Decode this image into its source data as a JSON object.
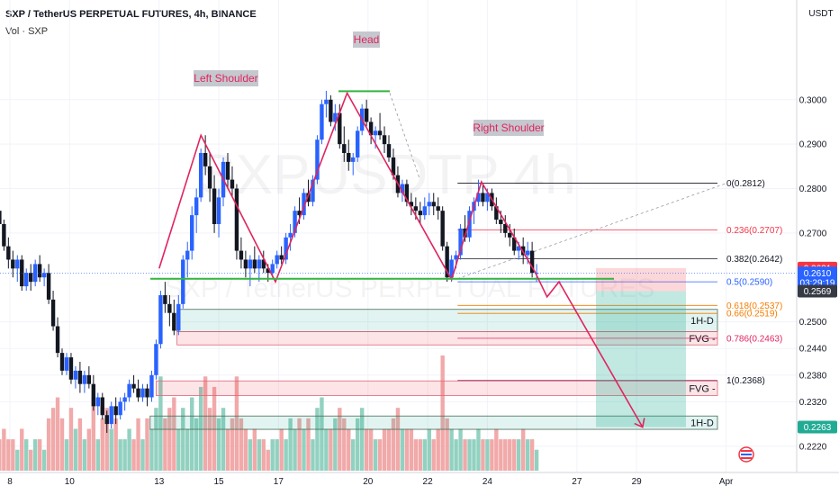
{
  "header": {
    "title": "SXP / TetherUS PERPETUAL FUTURES, 4h, BINANCE",
    "volume_label": "Vol · SXP"
  },
  "watermark": {
    "symbol": "SXPUSDTP 4h",
    "description": "SXP / TetherUS PERPETUAL FUTURES"
  },
  "colors": {
    "bull": "#2962ff",
    "bear": "#131722",
    "vol_bull": "#7fc9b5",
    "vol_bear": "#ee9a9a",
    "pattern": "#e0245e",
    "neckline": "#33b540",
    "red_badge": "#f23645",
    "blue_badge": "#2962ff",
    "green_badge": "#22ab94",
    "dark_badge": "#363a45"
  },
  "chart_data": {
    "type": "candlestick",
    "ylabel": "USDT",
    "ylim": [
      0.2175,
      0.3115
    ],
    "y_ticks": [
      0.3,
      0.29,
      0.28,
      0.27,
      0.25,
      0.244,
      0.238,
      0.232,
      0.222
    ],
    "x_ticks": [
      {
        "label": "8",
        "day": 8
      },
      {
        "label": "10",
        "day": 10
      },
      {
        "label": "13",
        "day": 13
      },
      {
        "label": "15",
        "day": 15
      },
      {
        "label": "17",
        "day": 17
      },
      {
        "label": "20",
        "day": 20
      },
      {
        "label": "22",
        "day": 22
      },
      {
        "label": "24",
        "day": 24
      },
      {
        "label": "27",
        "day": 27
      },
      {
        "label": "29",
        "day": 29
      },
      {
        "label": "Apr",
        "day": 32
      }
    ],
    "candles": [
      [
        7.2,
        0.2785,
        0.2815,
        0.277,
        0.28
      ],
      [
        7.35,
        0.28,
        0.282,
        0.277,
        0.278
      ],
      [
        7.5,
        0.278,
        0.2795,
        0.273,
        0.275
      ],
      [
        7.65,
        0.275,
        0.277,
        0.27,
        0.272
      ],
      [
        7.8,
        0.272,
        0.273,
        0.266,
        0.267
      ],
      [
        7.95,
        0.267,
        0.269,
        0.262,
        0.264
      ],
      [
        8.1,
        0.264,
        0.266,
        0.26,
        0.262
      ],
      [
        8.25,
        0.262,
        0.265,
        0.259,
        0.264
      ],
      [
        8.4,
        0.264,
        0.265,
        0.257,
        0.258
      ],
      [
        8.55,
        0.258,
        0.262,
        0.257,
        0.261
      ],
      [
        8.7,
        0.261,
        0.263,
        0.257,
        0.259
      ],
      [
        8.85,
        0.259,
        0.264,
        0.258,
        0.263
      ],
      [
        9.0,
        0.263,
        0.265,
        0.259,
        0.26
      ],
      [
        9.15,
        0.26,
        0.262,
        0.258,
        0.261
      ],
      [
        9.3,
        0.261,
        0.263,
        0.254,
        0.255
      ],
      [
        9.45,
        0.255,
        0.257,
        0.248,
        0.249
      ],
      [
        9.6,
        0.249,
        0.251,
        0.242,
        0.243
      ],
      [
        9.75,
        0.243,
        0.244,
        0.238,
        0.239
      ],
      [
        9.9,
        0.239,
        0.243,
        0.238,
        0.242
      ],
      [
        10.05,
        0.242,
        0.243,
        0.236,
        0.237
      ],
      [
        10.2,
        0.237,
        0.24,
        0.235,
        0.239
      ],
      [
        10.35,
        0.239,
        0.241,
        0.234,
        0.236
      ],
      [
        10.5,
        0.236,
        0.239,
        0.234,
        0.238
      ],
      [
        10.65,
        0.238,
        0.24,
        0.235,
        0.236
      ],
      [
        10.8,
        0.236,
        0.238,
        0.23,
        0.231
      ],
      [
        10.95,
        0.231,
        0.234,
        0.229,
        0.233
      ],
      [
        11.1,
        0.233,
        0.234,
        0.228,
        0.229
      ],
      [
        11.25,
        0.229,
        0.23,
        0.225,
        0.227
      ],
      [
        11.4,
        0.227,
        0.232,
        0.226,
        0.231
      ],
      [
        11.55,
        0.231,
        0.233,
        0.227,
        0.229
      ],
      [
        11.7,
        0.229,
        0.233,
        0.228,
        0.232
      ],
      [
        11.85,
        0.232,
        0.234,
        0.23,
        0.233
      ],
      [
        12.0,
        0.233,
        0.237,
        0.232,
        0.236
      ],
      [
        12.15,
        0.236,
        0.238,
        0.234,
        0.235
      ],
      [
        12.3,
        0.235,
        0.237,
        0.232,
        0.233
      ],
      [
        12.45,
        0.233,
        0.236,
        0.232,
        0.235
      ],
      [
        12.6,
        0.235,
        0.236,
        0.231,
        0.233
      ],
      [
        12.75,
        0.233,
        0.239,
        0.232,
        0.238
      ],
      [
        12.9,
        0.238,
        0.246,
        0.237,
        0.245
      ],
      [
        13.05,
        0.245,
        0.257,
        0.244,
        0.256
      ],
      [
        13.2,
        0.256,
        0.259,
        0.252,
        0.254
      ],
      [
        13.35,
        0.254,
        0.256,
        0.249,
        0.252
      ],
      [
        13.5,
        0.252,
        0.255,
        0.247,
        0.248
      ],
      [
        13.65,
        0.248,
        0.256,
        0.247,
        0.254
      ],
      [
        13.8,
        0.254,
        0.265,
        0.253,
        0.264
      ],
      [
        13.95,
        0.264,
        0.268,
        0.26,
        0.266
      ],
      [
        14.1,
        0.266,
        0.276,
        0.264,
        0.274
      ],
      [
        14.25,
        0.274,
        0.28,
        0.27,
        0.278
      ],
      [
        14.4,
        0.278,
        0.289,
        0.277,
        0.288
      ],
      [
        14.55,
        0.288,
        0.292,
        0.283,
        0.285
      ],
      [
        14.7,
        0.285,
        0.288,
        0.277,
        0.28
      ],
      [
        14.85,
        0.28,
        0.283,
        0.27,
        0.272
      ],
      [
        15.0,
        0.272,
        0.28,
        0.269,
        0.278
      ],
      [
        15.15,
        0.278,
        0.287,
        0.276,
        0.286
      ],
      [
        15.3,
        0.286,
        0.288,
        0.28,
        0.282
      ],
      [
        15.45,
        0.282,
        0.285,
        0.278,
        0.28
      ],
      [
        15.6,
        0.28,
        0.281,
        0.264,
        0.266
      ],
      [
        15.75,
        0.266,
        0.269,
        0.262,
        0.264
      ],
      [
        15.9,
        0.264,
        0.266,
        0.26,
        0.262
      ],
      [
        16.05,
        0.262,
        0.265,
        0.258,
        0.264
      ],
      [
        16.2,
        0.264,
        0.267,
        0.261,
        0.262
      ],
      [
        16.35,
        0.262,
        0.265,
        0.259,
        0.264
      ],
      [
        16.5,
        0.264,
        0.266,
        0.261,
        0.262
      ],
      [
        16.65,
        0.262,
        0.263,
        0.259,
        0.261
      ],
      [
        16.8,
        0.261,
        0.264,
        0.26,
        0.263
      ],
      [
        16.95,
        0.263,
        0.266,
        0.262,
        0.265
      ],
      [
        17.1,
        0.265,
        0.267,
        0.263,
        0.264
      ],
      [
        17.25,
        0.264,
        0.27,
        0.263,
        0.269
      ],
      [
        17.4,
        0.269,
        0.272,
        0.266,
        0.27
      ],
      [
        17.55,
        0.27,
        0.276,
        0.269,
        0.275
      ],
      [
        17.7,
        0.275,
        0.278,
        0.272,
        0.274
      ],
      [
        17.85,
        0.274,
        0.28,
        0.273,
        0.279
      ],
      [
        18.0,
        0.279,
        0.282,
        0.276,
        0.277
      ],
      [
        18.15,
        0.277,
        0.283,
        0.276,
        0.282
      ],
      [
        18.3,
        0.282,
        0.292,
        0.281,
        0.291
      ],
      [
        18.45,
        0.291,
        0.3,
        0.29,
        0.299
      ],
      [
        18.6,
        0.299,
        0.302,
        0.296,
        0.3
      ],
      [
        18.75,
        0.3,
        0.301,
        0.294,
        0.295
      ],
      [
        18.9,
        0.295,
        0.299,
        0.293,
        0.297
      ],
      [
        19.05,
        0.297,
        0.299,
        0.289,
        0.29
      ],
      [
        19.2,
        0.29,
        0.294,
        0.286,
        0.288
      ],
      [
        19.35,
        0.288,
        0.291,
        0.284,
        0.286
      ],
      [
        19.5,
        0.286,
        0.288,
        0.283,
        0.287
      ],
      [
        19.65,
        0.287,
        0.294,
        0.286,
        0.293
      ],
      [
        19.8,
        0.293,
        0.299,
        0.292,
        0.298
      ],
      [
        19.95,
        0.298,
        0.3,
        0.294,
        0.295
      ],
      [
        20.1,
        0.295,
        0.296,
        0.29,
        0.292
      ],
      [
        20.25,
        0.292,
        0.294,
        0.289,
        0.293
      ],
      [
        20.4,
        0.293,
        0.297,
        0.291,
        0.292
      ],
      [
        20.55,
        0.292,
        0.294,
        0.288,
        0.29
      ],
      [
        20.7,
        0.29,
        0.292,
        0.286,
        0.287
      ],
      [
        20.85,
        0.287,
        0.289,
        0.282,
        0.283
      ],
      [
        21.0,
        0.283,
        0.285,
        0.278,
        0.279
      ],
      [
        21.15,
        0.279,
        0.282,
        0.277,
        0.281
      ],
      [
        21.3,
        0.281,
        0.282,
        0.276,
        0.277
      ],
      [
        21.45,
        0.277,
        0.279,
        0.274,
        0.276
      ],
      [
        21.6,
        0.276,
        0.278,
        0.273,
        0.275
      ],
      [
        21.75,
        0.275,
        0.277,
        0.272,
        0.274
      ],
      [
        21.9,
        0.274,
        0.278,
        0.273,
        0.276
      ],
      [
        22.05,
        0.276,
        0.279,
        0.274,
        0.277
      ],
      [
        22.2,
        0.277,
        0.279,
        0.274,
        0.276
      ],
      [
        22.35,
        0.276,
        0.278,
        0.273,
        0.275
      ],
      [
        22.5,
        0.275,
        0.276,
        0.266,
        0.267
      ],
      [
        22.65,
        0.267,
        0.268,
        0.259,
        0.26
      ],
      [
        22.8,
        0.26,
        0.265,
        0.259,
        0.264
      ],
      [
        22.95,
        0.264,
        0.266,
        0.262,
        0.265
      ],
      [
        23.1,
        0.265,
        0.272,
        0.264,
        0.271
      ],
      [
        23.25,
        0.271,
        0.274,
        0.268,
        0.269
      ],
      [
        23.4,
        0.269,
        0.276,
        0.268,
        0.275
      ],
      [
        23.55,
        0.275,
        0.278,
        0.272,
        0.277
      ],
      [
        23.7,
        0.277,
        0.282,
        0.276,
        0.279
      ],
      [
        23.85,
        0.279,
        0.281,
        0.276,
        0.277
      ],
      [
        24.0,
        0.277,
        0.28,
        0.275,
        0.279
      ],
      [
        24.15,
        0.279,
        0.28,
        0.275,
        0.276
      ],
      [
        24.3,
        0.276,
        0.278,
        0.272,
        0.273
      ],
      [
        24.45,
        0.273,
        0.275,
        0.27,
        0.272
      ],
      [
        24.6,
        0.272,
        0.274,
        0.269,
        0.27
      ],
      [
        24.75,
        0.27,
        0.272,
        0.267,
        0.269
      ],
      [
        24.9,
        0.269,
        0.271,
        0.265,
        0.266
      ],
      [
        25.05,
        0.266,
        0.268,
        0.264,
        0.267
      ],
      [
        25.2,
        0.267,
        0.269,
        0.263,
        0.265
      ],
      [
        25.35,
        0.265,
        0.268,
        0.263,
        0.266
      ],
      [
        25.5,
        0.266,
        0.268,
        0.26,
        0.261
      ],
      [
        25.65,
        0.261,
        0.263,
        0.259,
        0.261
      ]
    ],
    "volume": [
      2,
      3,
      2,
      3,
      4,
      3,
      3,
      2,
      4,
      3,
      2,
      3,
      3,
      2,
      5,
      6,
      7,
      5,
      3,
      6,
      4,
      5,
      3,
      4,
      7,
      3,
      5,
      6,
      4,
      5,
      3,
      3,
      4,
      3,
      5,
      3,
      5,
      4,
      6,
      9,
      5,
      6,
      7,
      4,
      6,
      4,
      7,
      5,
      8,
      9,
      6,
      8,
      5,
      6,
      4,
      5,
      9,
      5,
      4,
      3,
      4,
      3,
      3,
      2,
      3,
      3,
      4,
      3,
      5,
      4,
      5,
      4,
      5,
      3,
      6,
      7,
      4,
      4,
      5,
      6,
      5,
      4,
      3,
      5,
      6,
      4,
      4,
      3,
      3,
      4,
      4,
      5,
      6,
      4,
      4,
      4,
      3,
      3,
      3,
      4,
      3,
      4,
      11,
      5,
      4,
      3,
      4,
      3,
      3,
      3,
      4,
      3,
      3,
      3,
      4,
      3,
      3,
      3,
      3,
      3,
      4,
      3,
      3,
      2
    ],
    "pattern_labels": [
      "Left Shoulder",
      "Head",
      "Right Shoulder"
    ],
    "pattern_zigzag": [
      [
        13.0,
        0.262
      ],
      [
        14.4,
        0.292
      ],
      [
        16.9,
        0.259
      ],
      [
        19.3,
        0.3015
      ],
      [
        22.8,
        0.2595
      ],
      [
        23.8,
        0.2815
      ],
      [
        25.6,
        0.2612
      ]
    ],
    "neckline_price": 0.2597,
    "head_top_price": 0.3015,
    "fib_levels": [
      {
        "label": "0(0.2812)",
        "price": 0.2812
      },
      {
        "label": "0.236(0.2707)",
        "price": 0.2707
      },
      {
        "label": "0.382(0.2642)",
        "price": 0.2642
      },
      {
        "label": "0.5(0.2590)",
        "price": 0.259
      },
      {
        "label": "0.618(0.2537)",
        "price": 0.2537
      },
      {
        "label": "0.66(0.2519)",
        "price": 0.2519
      },
      {
        "label": "0.786(0.2463)",
        "price": 0.2463
      },
      {
        "label": "1(0.2368)",
        "price": 0.2368
      }
    ],
    "zones": [
      {
        "label": "1H-D",
        "top": 0.2528,
        "bottom": 0.2478,
        "kind": "green"
      },
      {
        "label": "FVG -",
        "top": 0.2478,
        "bottom": 0.2448,
        "kind": "red"
      },
      {
        "label": "FVG -",
        "top": 0.2367,
        "bottom": 0.2334,
        "kind": "red"
      },
      {
        "label": "1H-D",
        "top": 0.2288,
        "bottom": 0.2258,
        "kind": "green"
      }
    ],
    "position": {
      "entry": 0.2569,
      "stop": 0.2621,
      "target": 0.2263
    },
    "projection": [
      [
        25.6,
        0.2612
      ],
      [
        26.0,
        0.2556
      ],
      [
        26.4,
        0.259
      ],
      [
        29.2,
        0.2263
      ]
    ],
    "price_badges": [
      {
        "label": "0.2621",
        "price": 0.2621,
        "kind": "red"
      },
      {
        "label": "0.2610",
        "sublabel": "03:29:19",
        "price": 0.261,
        "kind": "blue"
      },
      {
        "label": "0.2569",
        "price": 0.2569,
        "kind": "dark"
      },
      {
        "label": "0.2263",
        "price": 0.2263,
        "kind": "green"
      }
    ]
  }
}
